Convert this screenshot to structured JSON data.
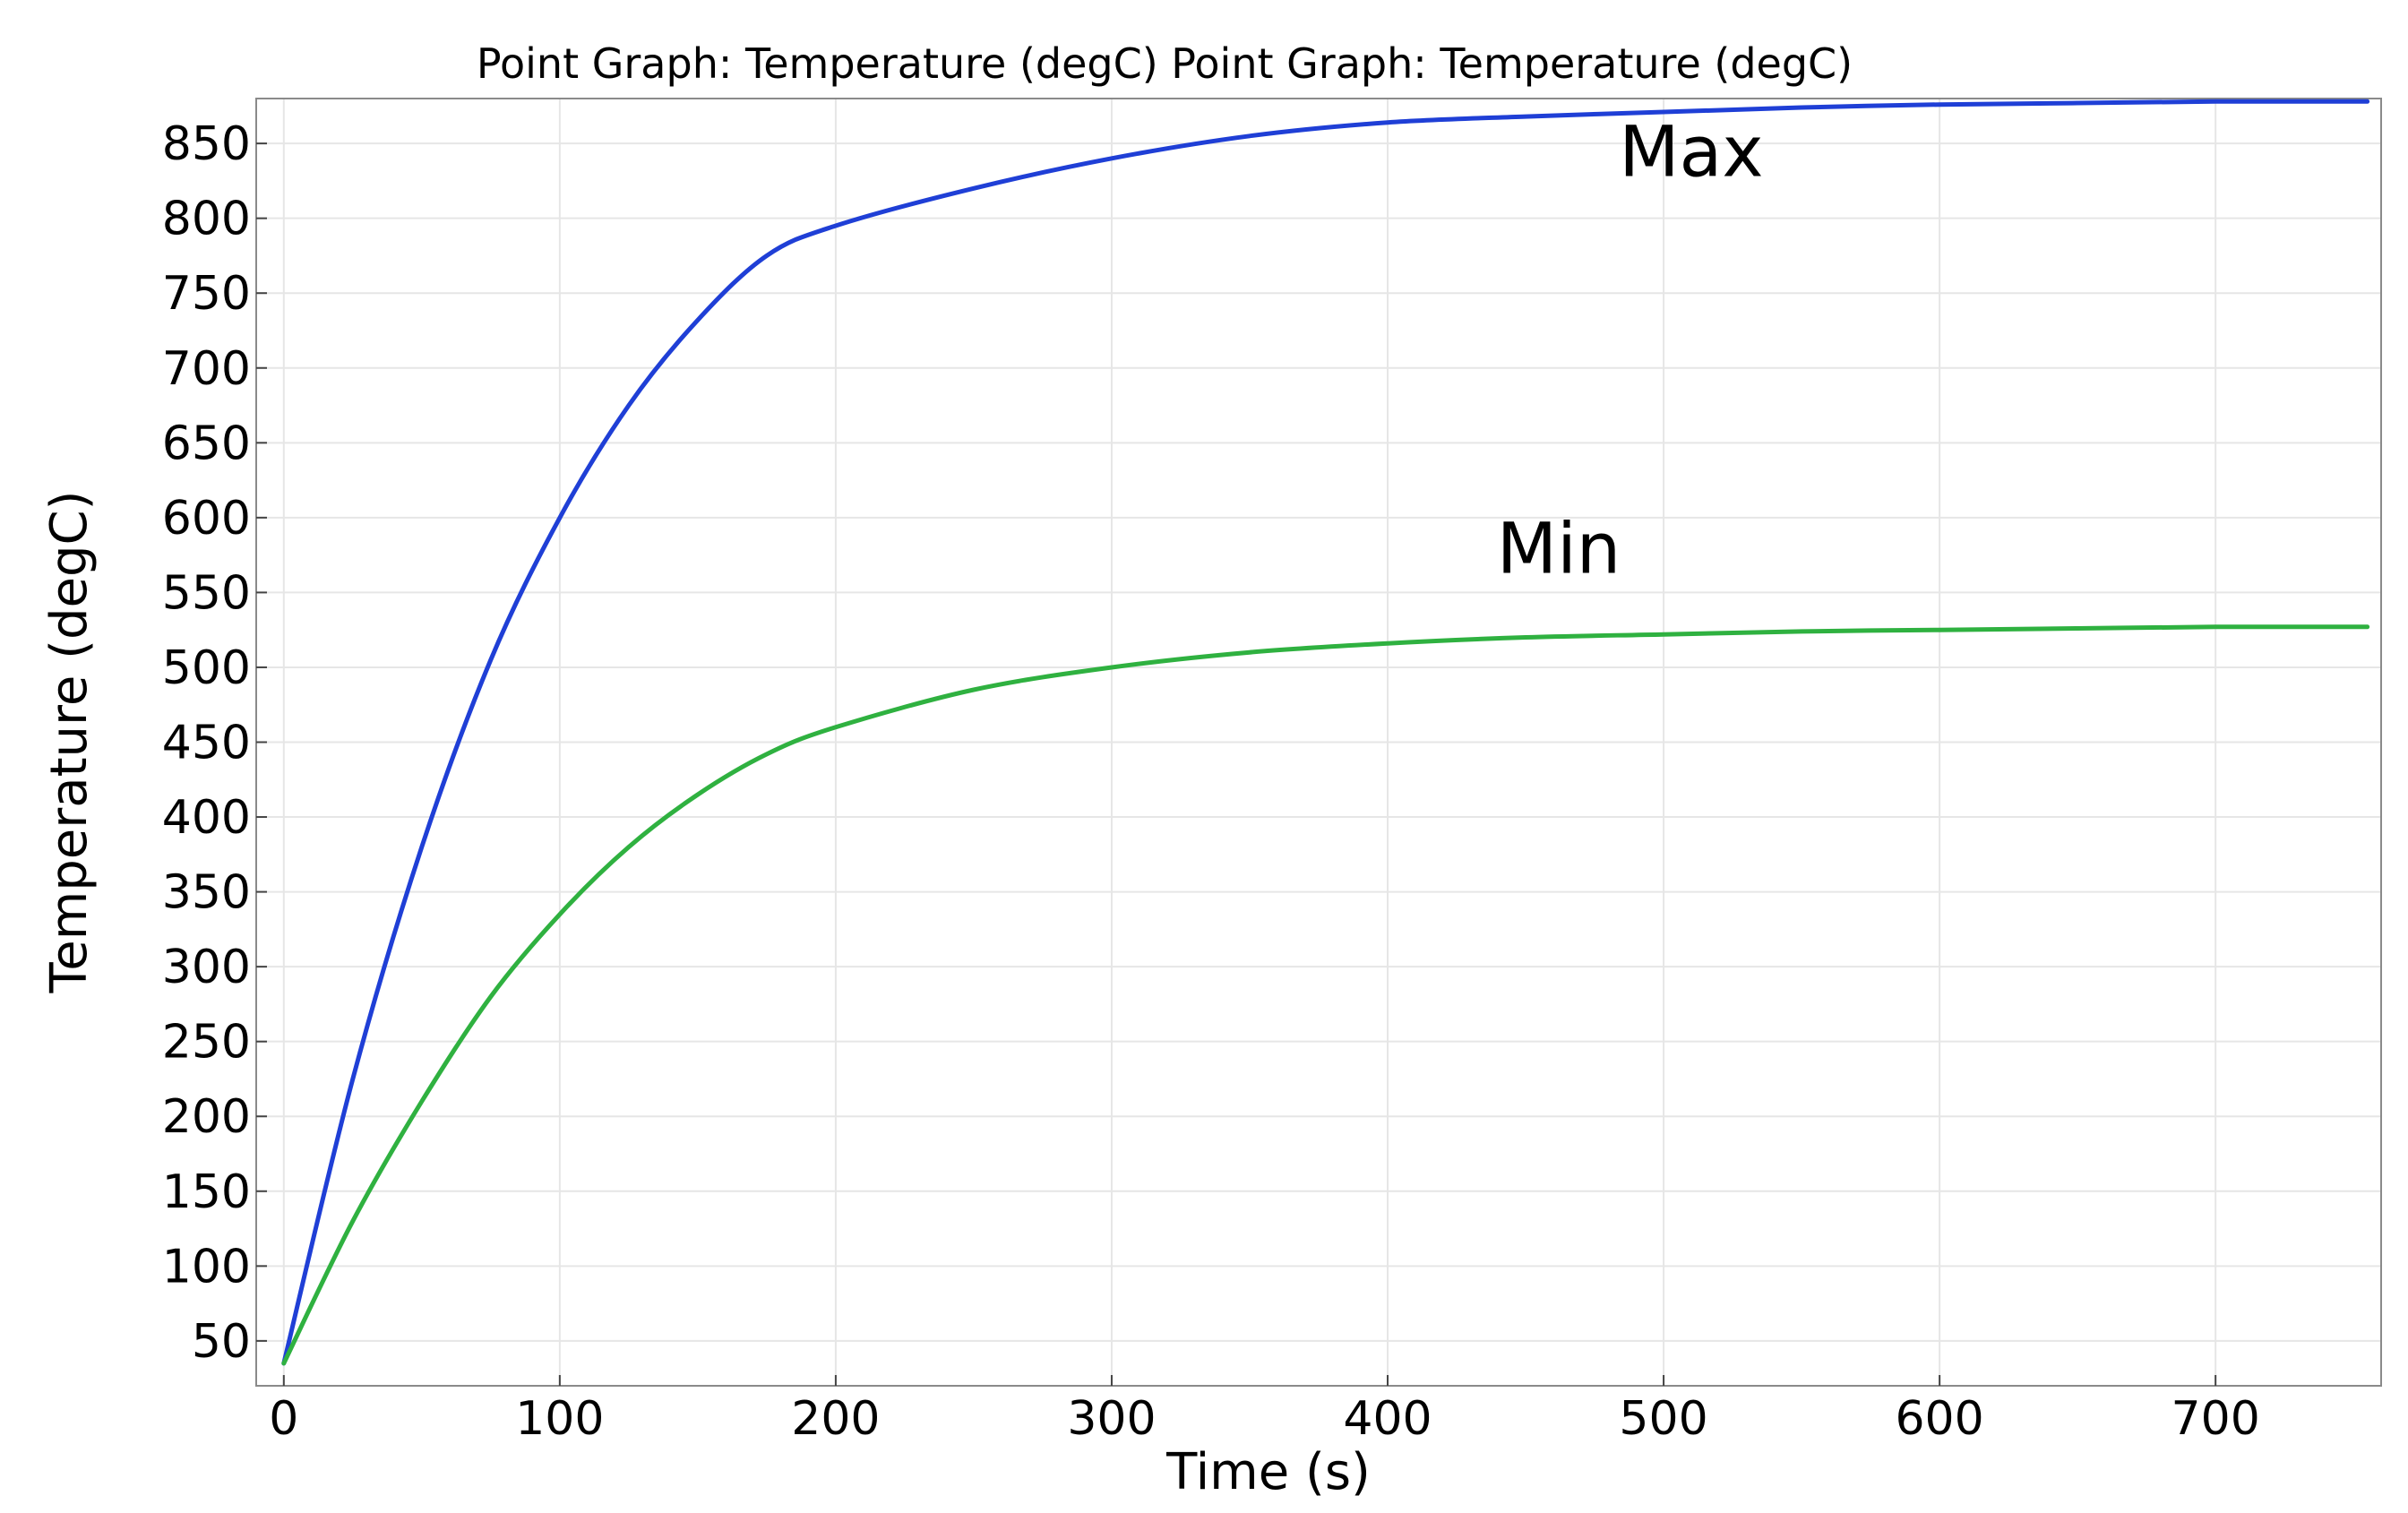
{
  "chart_data": {
    "type": "line",
    "title": "Point Graph: Temperature (degC)  Point Graph: Temperature (degC)",
    "xlabel": "Time (s)",
    "ylabel": "Temperature (degC)",
    "xlim": [
      -10,
      760
    ],
    "ylim": [
      20,
      880
    ],
    "grid": true,
    "x_ticks": [
      0,
      100,
      200,
      300,
      400,
      500,
      600,
      700
    ],
    "y_ticks": [
      50,
      100,
      150,
      200,
      250,
      300,
      350,
      400,
      450,
      500,
      550,
      600,
      650,
      700,
      750,
      800,
      850
    ],
    "x": [
      0,
      25,
      50,
      75,
      100,
      125,
      150,
      175,
      200,
      250,
      300,
      350,
      400,
      450,
      500,
      550,
      600,
      650,
      700,
      755
    ],
    "series": [
      {
        "name": "Max",
        "color": "#1f3fd6",
        "values": [
          35,
          225,
          380,
          505,
          600,
          675,
          732,
          775,
          795,
          820,
          840,
          855,
          864,
          868,
          871,
          874,
          876,
          877,
          878,
          878
        ]
      },
      {
        "name": "Min",
        "color": "#2fb140",
        "values": [
          35,
          130,
          210,
          280,
          335,
          380,
          415,
          442,
          460,
          485,
          500,
          510,
          516,
          520,
          522,
          524,
          525,
          526,
          527,
          527
        ]
      }
    ],
    "annotations": [
      {
        "text": "Max",
        "x": 510,
        "y": 845
      },
      {
        "text": "Min",
        "x": 462,
        "y": 580
      }
    ]
  }
}
